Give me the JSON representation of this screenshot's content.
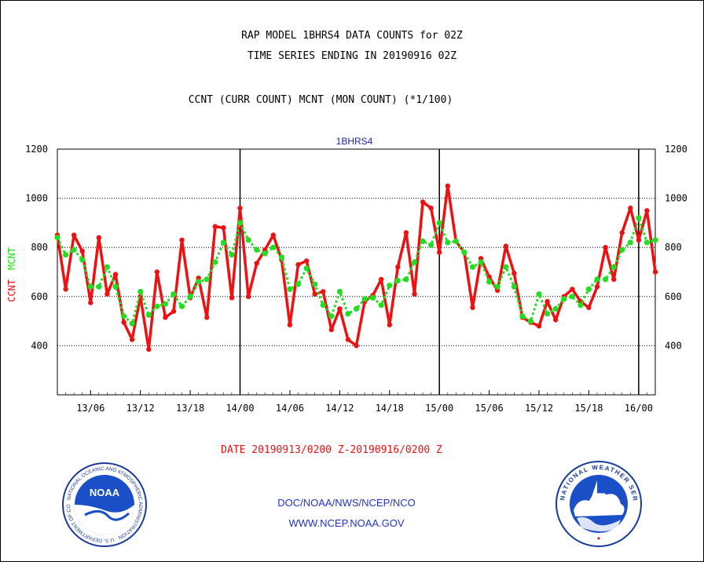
{
  "header": {
    "title_line1": "RAP MODEL 1BHRS4 DATA COUNTS for 02Z",
    "title_line2": "TIME SERIES ENDING IN 20190916 02Z",
    "subtitle": "CCNT (CURR COUNT) MCNT (MON COUNT) (*1/100)"
  },
  "footer": {
    "date_range": "DATE 20190913/0200 Z-20190916/0200 Z",
    "org": "DOC/NOAA/NWS/NCEP/NCO",
    "url": "WWW.NCEP.NOAA.GOV"
  },
  "logos": {
    "noaa_text": "NOAA",
    "noaa_ring": "NATIONAL OCEANIC AND ATMOSPHERIC ADMINISTRATION · U.S. DEPARTMENT OF COMMERCE ·",
    "nws_ring": "NATIONAL WEATHER SERVICE"
  },
  "colors": {
    "ccnt": "#ee1111",
    "mcnt": "#22dd22",
    "panel_label": "#2222aa",
    "footer_text": "#2233cc"
  },
  "chart_data": {
    "type": "line",
    "title": "1BHRS4",
    "ylabel_left": [
      "CCNT",
      "MCNT"
    ],
    "ylim": [
      200,
      1200
    ],
    "yticks": [
      400,
      600,
      800,
      1000,
      1200
    ],
    "grid": true,
    "x_tick_labels": [
      "13/06",
      "13/12",
      "13/18",
      "14/00",
      "14/06",
      "14/12",
      "14/18",
      "15/00",
      "15/06",
      "15/12",
      "15/18",
      "16/00"
    ],
    "x_tick_hours": [
      4,
      10,
      16,
      22,
      28,
      34,
      40,
      46,
      52,
      58,
      64,
      70
    ],
    "x_range_hours": [
      0,
      72
    ],
    "day_boundary_hours": [
      22,
      46,
      70
    ],
    "series": [
      {
        "name": "CCNT",
        "values": [
          850,
          630,
          850,
          785,
          575,
          840,
          610,
          690,
          495,
          425,
          600,
          385,
          700,
          515,
          540,
          830,
          595,
          675,
          515,
          885,
          880,
          595,
          960,
          600,
          735,
          790,
          850,
          750,
          485,
          730,
          745,
          610,
          620,
          465,
          550,
          425,
          400,
          580,
          605,
          670,
          485,
          720,
          860,
          610,
          985,
          960,
          780,
          1050,
          825,
          780,
          555,
          755,
          680,
          625,
          805,
          695,
          515,
          495,
          480,
          580,
          505,
          600,
          630,
          580,
          555,
          640,
          800,
          670,
          860,
          960,
          830,
          950,
          700
        ]
      },
      {
        "name": "MCNT",
        "values": [
          840,
          770,
          790,
          750,
          640,
          640,
          720,
          640,
          520,
          490,
          620,
          525,
          560,
          570,
          610,
          560,
          600,
          660,
          670,
          740,
          820,
          770,
          900,
          830,
          790,
          775,
          800,
          760,
          630,
          650,
          715,
          650,
          565,
          520,
          620,
          530,
          550,
          590,
          595,
          565,
          645,
          665,
          670,
          740,
          825,
          810,
          900,
          820,
          825,
          780,
          720,
          740,
          660,
          640,
          720,
          640,
          520,
          500,
          610,
          530,
          550,
          590,
          600,
          565,
          630,
          670,
          670,
          720,
          790,
          820,
          920,
          820,
          830
        ]
      }
    ]
  }
}
